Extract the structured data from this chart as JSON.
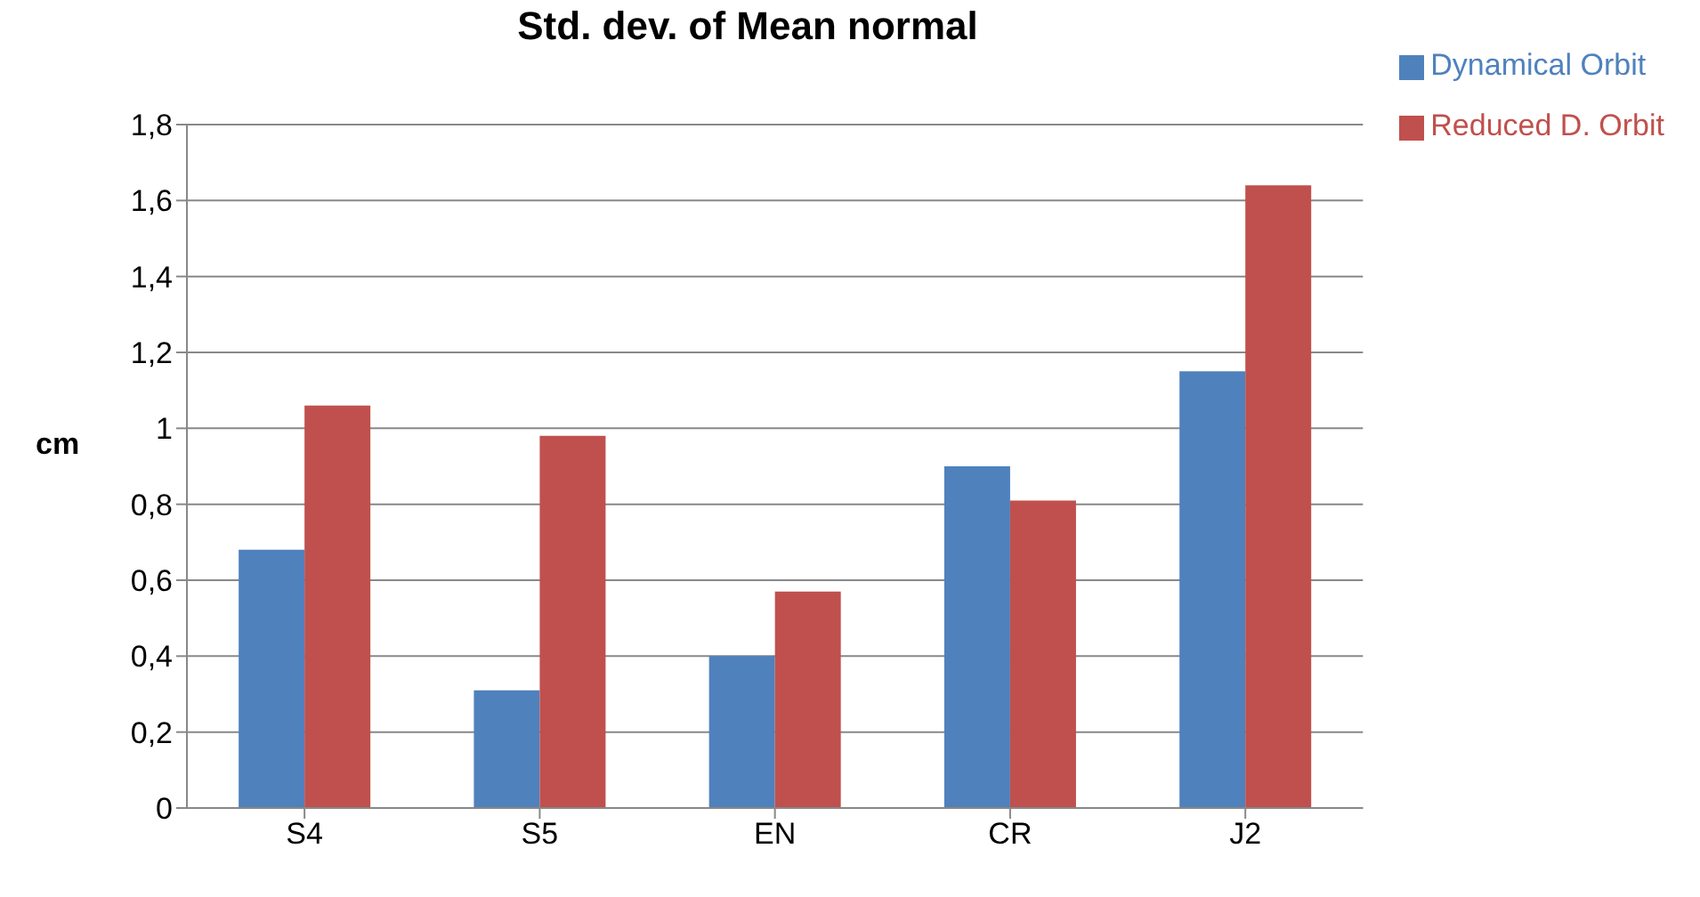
{
  "chart_data": {
    "type": "bar",
    "title": "Std. dev. of Mean normal",
    "ylabel": "cm",
    "categories": [
      "S4",
      "S5",
      "EN",
      "CR",
      "J2"
    ],
    "series": [
      {
        "name": "Dynamical Orbit",
        "color": "#4f81bd",
        "values": [
          0.68,
          0.31,
          0.4,
          0.9,
          1.15
        ]
      },
      {
        "name": "Reduced D. Orbit",
        "color": "#c0504d",
        "values": [
          1.06,
          0.98,
          0.57,
          0.81,
          1.64
        ]
      }
    ],
    "ylim": [
      0,
      1.8
    ],
    "yticks": [
      0,
      {
        "value": 0.2,
        "label": "0,2"
      },
      {
        "value": 0.4,
        "label": "0,4"
      },
      {
        "value": 0.6,
        "label": "0,6"
      },
      {
        "value": 0.8,
        "label": "0,8"
      },
      1,
      {
        "value": 1.2,
        "label": "1,2"
      },
      {
        "value": 1.4,
        "label": "1,4"
      },
      {
        "value": 1.6,
        "label": "1,6"
      },
      {
        "value": 1.8,
        "label": "1,8"
      }
    ],
    "grid": "y",
    "legend": "top right"
  }
}
